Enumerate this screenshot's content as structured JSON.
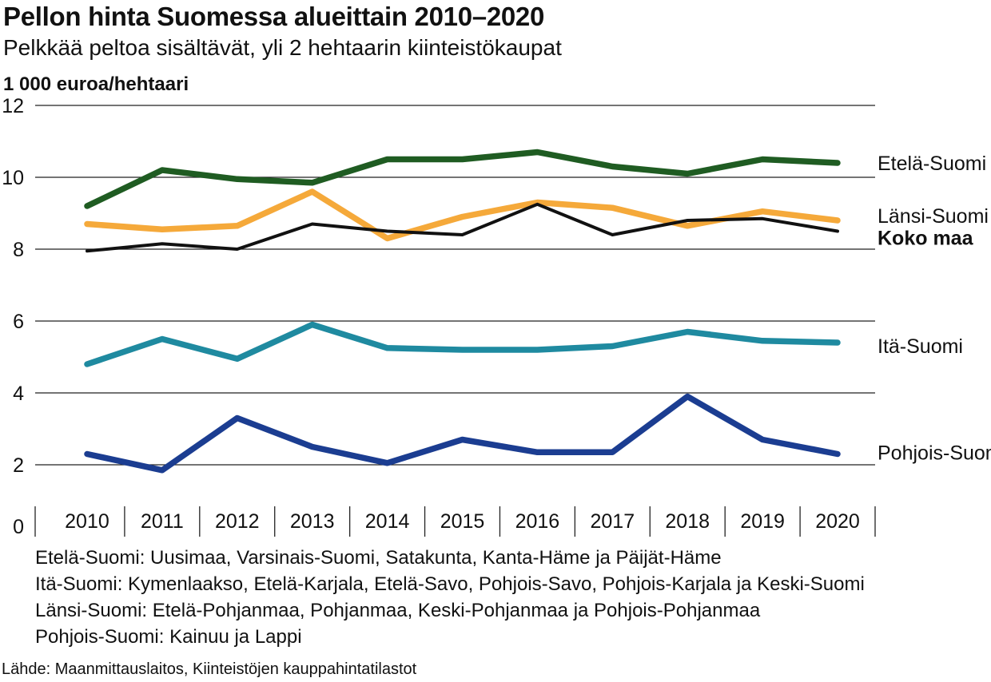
{
  "title": "Pellon hinta Suomessa alueittain 2010–2020",
  "subtitle": "Pelkkää peltoa sisältävät, yli 2 hehtaarin kiinteistökaupat",
  "unit_label": "1 000 euroa/hehtaari",
  "notes": [
    "Etelä-Suomi: Uusimaa, Varsinais-Suomi, Satakunta, Kanta-Häme ja Päijät-Häme",
    "Itä-Suomi: Kymenlaakso, Etelä-Karjala, Etelä-Savo, Pohjois-Savo, Pohjois-Karjala ja Keski-Suomi",
    "Länsi-Suomi: Etelä-Pohjanmaa, Pohjanmaa, Keski-Pohjanmaa ja Pohjois-Pohjanmaa",
    "Pohjois-Suomi: Kainuu ja Lappi"
  ],
  "source": "Lähde: Maanmittauslaitos, Kiinteistöjen kauppahintatilastot",
  "chart_data": {
    "type": "line",
    "x": [
      "2010",
      "2011",
      "2012",
      "2013",
      "2014",
      "2015",
      "2016",
      "2017",
      "2018",
      "2019",
      "2020"
    ],
    "yticks": [
      "0",
      "2",
      "4",
      "6",
      "8",
      "10",
      "12"
    ],
    "ylim": [
      0,
      12
    ],
    "grid": true,
    "series": [
      {
        "name": "Etelä-Suomi",
        "color": "#1f5c22",
        "bold": false,
        "values": [
          9.2,
          10.2,
          9.95,
          9.85,
          10.5,
          10.5,
          10.7,
          10.3,
          10.1,
          10.5,
          10.4
        ]
      },
      {
        "name": "Länsi-Suomi",
        "color": "#f5a93a",
        "bold": false,
        "values": [
          8.7,
          8.55,
          8.65,
          9.6,
          8.3,
          8.9,
          9.3,
          9.15,
          8.65,
          9.05,
          8.8
        ]
      },
      {
        "name": "Koko maa",
        "color": "#111111",
        "bold": true,
        "values": [
          7.95,
          8.15,
          8.0,
          8.7,
          8.5,
          8.4,
          9.25,
          8.4,
          8.8,
          8.85,
          8.5
        ]
      },
      {
        "name": "Itä-Suomi",
        "color": "#1f8aa0",
        "bold": false,
        "values": [
          4.8,
          5.5,
          4.95,
          5.9,
          5.25,
          5.2,
          5.2,
          5.3,
          5.7,
          5.45,
          5.4
        ]
      },
      {
        "name": "Pohjois-Suomi",
        "color": "#1b3d91",
        "bold": false,
        "values": [
          2.3,
          1.85,
          3.3,
          2.5,
          2.05,
          2.7,
          2.35,
          2.35,
          3.9,
          2.7,
          2.3
        ]
      }
    ]
  }
}
